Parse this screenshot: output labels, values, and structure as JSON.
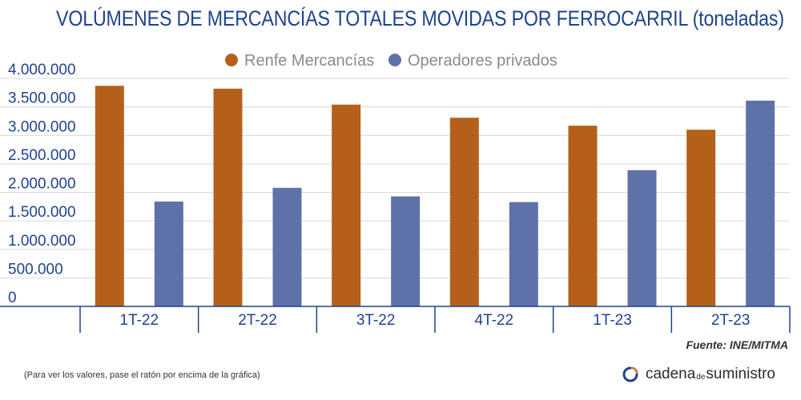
{
  "chart_data": {
    "type": "bar",
    "title": "VOLÚMENES DE MERCANCÍAS TOTALES MOVIDAS POR FERROCARRIL (toneladas)",
    "categories": [
      "1T-22",
      "2T-22",
      "3T-22",
      "4T-22",
      "1T-23",
      "2T-23"
    ],
    "series": [
      {
        "name": "Renfe Mercancías",
        "color": "#b5601a",
        "values": [
          3870000,
          3820000,
          3540000,
          3310000,
          3170000,
          3100000
        ]
      },
      {
        "name": "Operadores privados",
        "color": "#5f71a9",
        "values": [
          1840000,
          2080000,
          1930000,
          1830000,
          2390000,
          3610000
        ]
      }
    ],
    "yticks": [
      "4.000.000",
      "3.500.000",
      "3.000.000",
      "2.500.000",
      "2.000.000",
      "1.500.000",
      "1.000.000",
      "500.000",
      "0"
    ],
    "ylim": [
      0,
      4000000
    ],
    "grid": true,
    "legend_position": "top-center"
  },
  "source": "Fuente: INE/MITMA",
  "footnote": "(Para ver los valores, pase el ratón por encima de la gráfica)",
  "brand": {
    "part1": "cadena",
    "part2": "de",
    "part3": "suministro"
  },
  "colors": {
    "title": "#1e4390",
    "accent": "#e8732a"
  }
}
